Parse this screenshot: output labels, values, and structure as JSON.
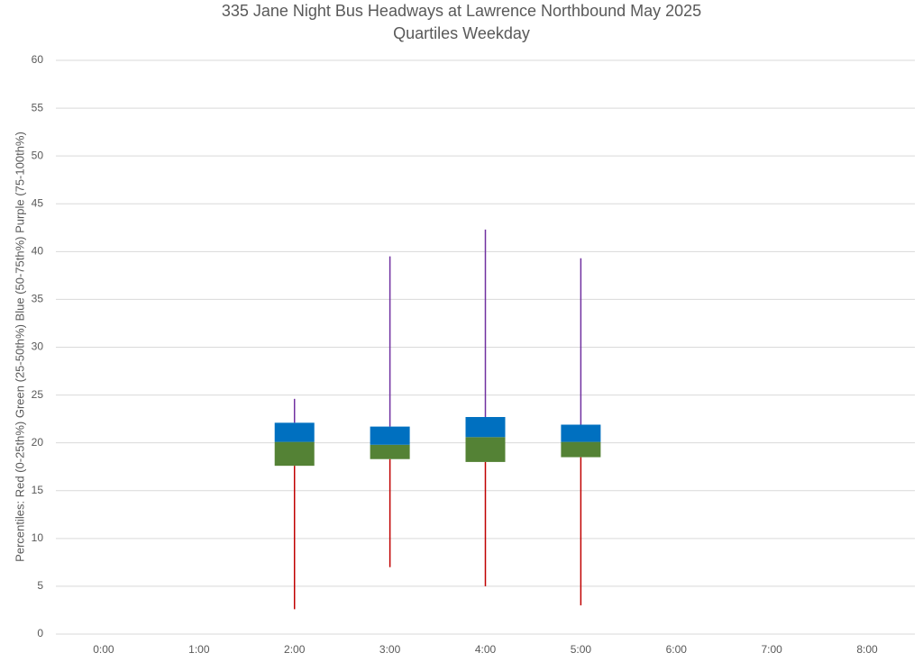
{
  "chart_data": {
    "type": "box",
    "title": "335 Jane Night Bus Headways at Lawrence Northbound May 2025",
    "subtitle": "Quartiles Weekday",
    "y_label": "Percentiles:  Red (0-25th%)  Green (25-50th%)  Blue (50-75th%)  Purple (75-100th%)",
    "categories": [
      "0:00",
      "1:00",
      "2:00",
      "3:00",
      "4:00",
      "5:00",
      "6:00",
      "7:00",
      "8:00"
    ],
    "min": [
      null,
      null,
      2.6,
      7.0,
      5.0,
      3.0,
      null,
      null,
      null
    ],
    "q1": [
      null,
      null,
      17.6,
      18.3,
      18.0,
      18.5,
      null,
      null,
      null
    ],
    "median": [
      null,
      null,
      20.1,
      19.8,
      20.6,
      20.1,
      null,
      null,
      null
    ],
    "q3": [
      null,
      null,
      22.1,
      21.7,
      22.7,
      21.9,
      null,
      null,
      null
    ],
    "max": [
      null,
      null,
      24.6,
      39.5,
      42.3,
      39.3,
      null,
      null,
      null
    ],
    "colors": [
      "#c00000",
      "#548235",
      "#0070c0",
      "#7030a0"
    ],
    "ylim": [
      0,
      60
    ],
    "yticks": [
      0,
      5,
      10,
      15,
      20,
      25,
      30,
      35,
      40,
      45,
      50,
      55,
      60
    ],
    "grid": true
  }
}
